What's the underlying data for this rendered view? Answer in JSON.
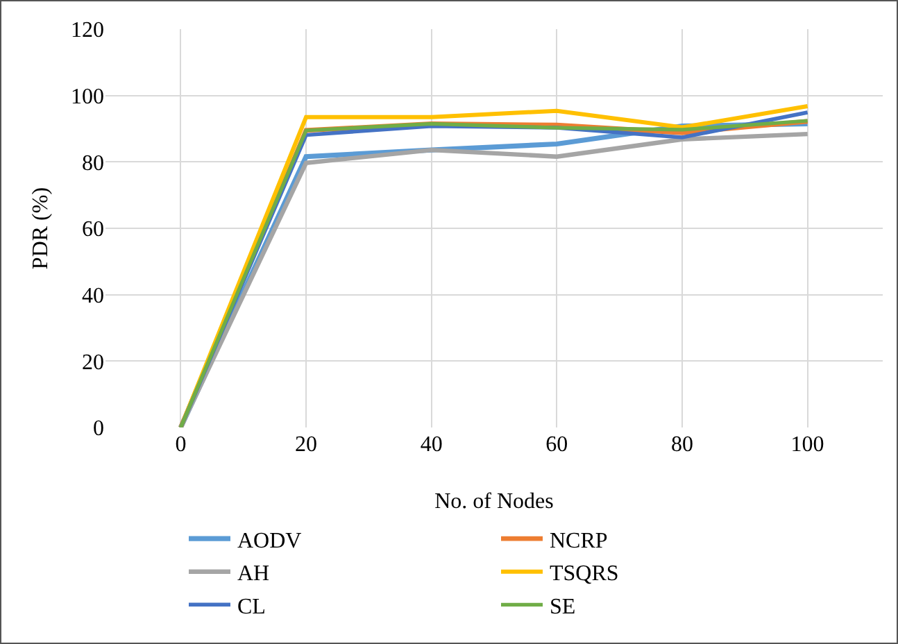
{
  "chart_data": {
    "type": "line",
    "xlabel": "No. of Nodes",
    "ylabel": "PDR (%)",
    "x": [
      0,
      20,
      40,
      60,
      80,
      100
    ],
    "series": [
      {
        "name": "AODV",
        "color": "#5b9bd5",
        "values": [
          0,
          81.6,
          83.6,
          85.4,
          90.8,
          91.5
        ]
      },
      {
        "name": "NCRP",
        "color": "#ed7d31",
        "values": [
          0,
          89.5,
          91.5,
          91.1,
          88.8,
          92.2
        ]
      },
      {
        "name": "AH",
        "color": "#a5a5a5",
        "values": [
          0,
          79.7,
          83.6,
          81.6,
          86.8,
          88.4
        ]
      },
      {
        "name": "TSQRS",
        "color": "#ffc000",
        "values": [
          0,
          93.5,
          93.5,
          95.4,
          90.4,
          96.8
        ]
      },
      {
        "name": "CL",
        "color": "#4472c4",
        "values": [
          0,
          88.1,
          90.8,
          90.3,
          87.4,
          94.9
        ]
      },
      {
        "name": "SE",
        "color": "#70ad47",
        "values": [
          0,
          89.5,
          91.5,
          90.3,
          89.7,
          92.4
        ]
      }
    ],
    "xlim": [
      -12,
      112
    ],
    "xticks": [
      0,
      20,
      40,
      60,
      80,
      100
    ],
    "ylim": [
      0,
      120
    ],
    "yticks": [
      0,
      20,
      40,
      60,
      80,
      100,
      120
    ],
    "grid": true,
    "legend": "bottom",
    "marker": "none",
    "line_style": "solid"
  }
}
